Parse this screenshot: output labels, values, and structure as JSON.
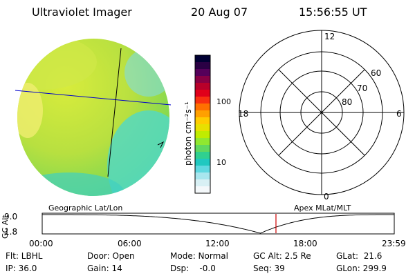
{
  "header": {
    "title": "Ultraviolet Imager",
    "date": "20 Aug 07",
    "time": "15:56:55 UT"
  },
  "colorbar": {
    "unit_label": "photon cm⁻²s⁻¹",
    "ticks": [
      "100",
      "10"
    ],
    "colors": [
      "#000033",
      "#2a0044",
      "#55005a",
      "#880044",
      "#b8002a",
      "#e0001a",
      "#f83010",
      "#ff7000",
      "#ffa000",
      "#ffcc00",
      "#e8e000",
      "#c0ec00",
      "#90e830",
      "#60d860",
      "#30d090",
      "#20c8c0",
      "#60d8e0",
      "#a8e6ee",
      "#d8f0f4",
      "#f4f8fa"
    ]
  },
  "polar": {
    "mlt_labels": {
      "top": "12",
      "right": "6",
      "bottom": "0",
      "left": "18"
    },
    "lat_labels": [
      "60",
      "70",
      "80"
    ]
  },
  "orbit": {
    "y_label": "GC Alt",
    "y_ticks": [
      "9.0",
      "1.8"
    ],
    "left_label": "Geographic Lat/Lon",
    "right_label": "Apex MLat/MLT",
    "x_ticks": [
      "00:00",
      "06:00",
      "12:00",
      "18:00",
      "23:59"
    ],
    "marker_time_fraction": 0.664
  },
  "status": {
    "flt": "Flt: LBHL",
    "ip": "IP: 36.0",
    "door": "Door: Open",
    "gain": "Gain: 14",
    "mode": "Mode: Normal",
    "dsp": "Dsp:    -0.0",
    "gcalt": "GC Alt: 2.5 Re",
    "seq": "Seq: 39",
    "glat": "GLat:  21.6",
    "glon": "GLon: 299.9"
  }
}
